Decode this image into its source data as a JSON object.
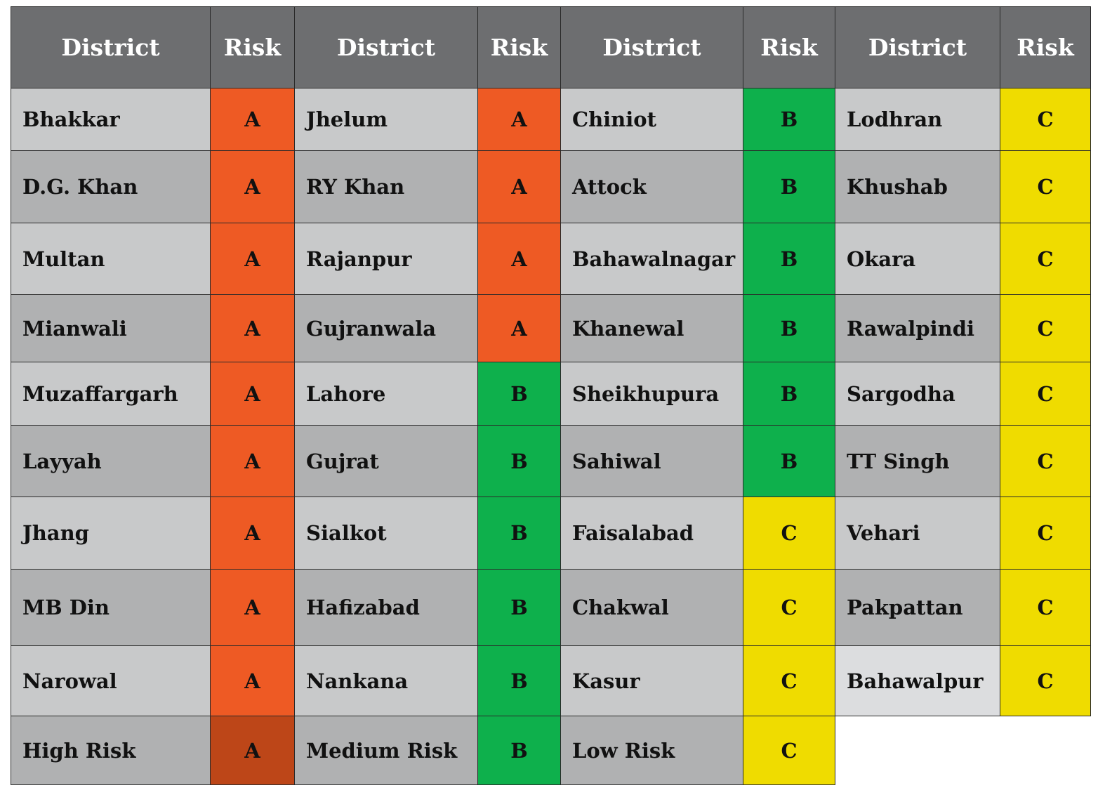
{
  "headers": [
    "District",
    "Risk",
    "District",
    "Risk",
    "District",
    "Risk",
    "District",
    "Risk"
  ],
  "rows": [
    [
      [
        "Bhakkar",
        "A"
      ],
      [
        "Jhelum",
        "A"
      ],
      [
        "Chiniot",
        "B"
      ],
      [
        "Lodhran",
        "C"
      ]
    ],
    [
      [
        "D.G. Khan",
        "A"
      ],
      [
        "RY Khan",
        "A"
      ],
      [
        "Attock",
        "B"
      ],
      [
        "Khushab",
        "C"
      ]
    ],
    [
      [
        "Multan",
        "A"
      ],
      [
        "Rajanpur",
        "A"
      ],
      [
        "Bahawalnagar",
        "B"
      ],
      [
        "Okara",
        "C"
      ]
    ],
    [
      [
        "Mianwali",
        "A"
      ],
      [
        "Gujranwala",
        "A"
      ],
      [
        "Khanewal",
        "B"
      ],
      [
        "Rawalpindi",
        "C"
      ]
    ],
    [
      [
        "Muzaffargarh",
        "A"
      ],
      [
        "Lahore",
        "B"
      ],
      [
        "Sheikhupura",
        "B"
      ],
      [
        "Sargodha",
        "C"
      ]
    ],
    [
      [
        "Layyah",
        "A"
      ],
      [
        "Gujrat",
        "B"
      ],
      [
        "Sahiwal",
        "B"
      ],
      [
        "TT Singh",
        "C"
      ]
    ],
    [
      [
        "Jhang",
        "A"
      ],
      [
        "Sialkot",
        "B"
      ],
      [
        "Faisalabad",
        "C"
      ],
      [
        "Vehari",
        "C"
      ]
    ],
    [
      [
        "MB Din",
        "A"
      ],
      [
        "Hafizabad",
        "B"
      ],
      [
        "Chakwal",
        "C"
      ],
      [
        "Pakpattan",
        "C"
      ]
    ],
    [
      [
        "Narowal",
        "A"
      ],
      [
        "Nankana",
        "B"
      ],
      [
        "Kasur",
        "C"
      ],
      [
        "Bahawalpur",
        "C"
      ]
    ]
  ],
  "legend": [
    {
      "label": "High Risk",
      "code": "A"
    },
    {
      "label": "Medium Risk",
      "code": "B"
    },
    {
      "label": "Low Risk",
      "code": "C"
    }
  ],
  "colors": {
    "header_bg": "#6d6e70",
    "risk_A": "#ee5a24",
    "risk_B": "#0eb04c",
    "risk_C": "#efdc00",
    "legend_A": "#bd4618",
    "row_light": "#c8c9ca",
    "row_dark": "#b0b1b2"
  }
}
